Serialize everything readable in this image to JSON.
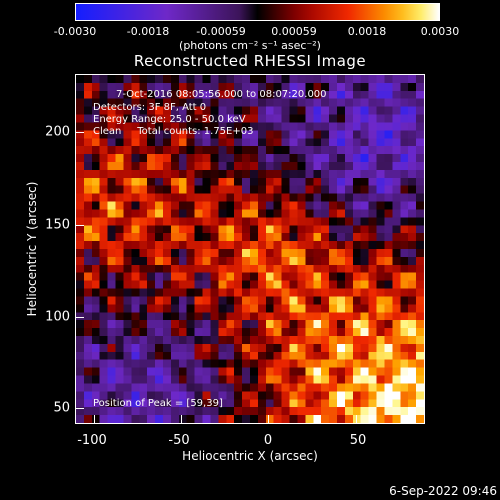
{
  "colorbar": {
    "ticks": [
      "-0.0030",
      "-0.0018",
      "-0.00059",
      "0.00059",
      "0.0018",
      "0.0030"
    ],
    "units": "(photons cm⁻² s⁻¹ asec⁻²)"
  },
  "title": "Reconstructed RHESSI Image",
  "annotations": {
    "time": "7-Oct-2016 08:05:56.000 to 08:07:20.000",
    "detectors": "Detectors: 3F 8F, Att 0",
    "energy": "Energy Range: 25.0 - 50.0 keV",
    "clean": "Clean     Total counts: 1.75E+03",
    "peak": "Position of Peak = [59,39]"
  },
  "axes": {
    "xlabel": "Heliocentric X (arcsec)",
    "ylabel": "Heliocentric Y (arcsec)",
    "xticks": [
      "-100",
      "-50",
      "0",
      "50"
    ],
    "yticks": [
      "200",
      "150",
      "100",
      "50"
    ]
  },
  "timestamp": "6-Sep-2022 09:46"
}
